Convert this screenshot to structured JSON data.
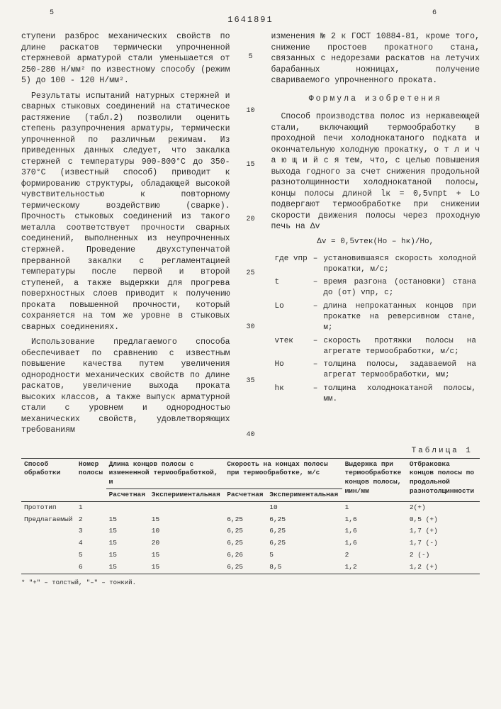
{
  "page_number": "1641891",
  "top_left": "5",
  "top_right": "6",
  "left_column": {
    "p1": "ступени разброс механических свойств по длине раскатов термически упрочненной стержневой арматурой стали уменьшается от 250-280 Н/мм² по известному способу (режим 5) до 100 - 120 Н/мм².",
    "p2": "Результаты испытаний натурных стержней и сварных стыковых соединений на статическое растяжение (табл.2) позволили оценить степень разупрочнения арматуры, термически упрочненной по различным режимам. Из приведенных данных следует, что закалка стержней с температуры 900-800°С до 350-370°С (известный способ) приводит к формированию структуры, обладающей высокой чувствительностью к повторному термическому воздействию (сварке). Прочность стыковых соединений из такого металла соответствует прочности сварных соединений, выполненных из неупрочненных стержней. Проведение двухступенчатой прерванной закалки с регламентацией температуры после первой и второй ступеней, а также выдержки для прогрева поверхностных слоев приводит к получению проката повышенной прочности, который сохраняется на том же уровне в стыковых сварных соединениях.",
    "p3": "Использование предлагаемого способа обеспечивает по сравнению с известным повышение качества путем увеличения однородности механических свойств по длине раскатов, увеличение выхода проката высоких классов, а также выпуск арматурной стали с уровнем и однородностью механических свойств, удовлетворяющих требованиям"
  },
  "right_column": {
    "p1": "изменения № 2 к ГОСТ 10884-81, кроме того, снижение простоев прокатного стана, связанных с недорезами раскатов на летучих барабанных ножницах, получение свариваемого упрочненного проката.",
    "formula_title": "Формула изобретения",
    "p2": "Способ производства полос из нержавеющей стали, включающий термообработку в проходной печи холоднокатаного подката и окончательную холодную прокатку, о т л и ч а ю щ и й с я тем, что, с целью повышения выхода годного за счет снижения продольной разнотолщинности холоднокатаной полосы, концы полосы длиной lк = 0,5vпрt + Lо подвергают термообработке при снижении скорости движения полосы через проходную печь на Δv",
    "eq": "Δv = 0,5vтек(Hо – hк)/Hо,",
    "where": [
      {
        "sym": "где vпр",
        "dash": "–",
        "def": "установившаяся скорость холодной прокатки, м/с;"
      },
      {
        "sym": "t",
        "dash": "–",
        "def": "время разгона (остановки) стана до (от) vпр, с;"
      },
      {
        "sym": "Lо",
        "dash": "–",
        "def": "длина непрокатанных концов при прокатке на реверсивном стане, м;"
      },
      {
        "sym": "vтек",
        "dash": "–",
        "def": "скорость протяжки полосы на агрегате термообработки, м/с;"
      },
      {
        "sym": "Hо",
        "dash": "–",
        "def": "толщина полосы, задаваемой на агрегат термообработки, мм;"
      },
      {
        "sym": "hк",
        "dash": "–",
        "def": "толщина холоднокатаной полосы, мм."
      }
    ]
  },
  "line_markers": [
    "5",
    "10",
    "15",
    "20",
    "25",
    "30",
    "35",
    "40"
  ],
  "table": {
    "caption": "Таблица 1",
    "headers_row1": [
      "Способ обработки",
      "Номер полосы",
      "Длина концов полосы с измененной термообработкой, м",
      "",
      "Скорость на концах полосы при термообработке, м/с",
      "",
      "Выдержка при термообработке концов полосы, мин/мм",
      "Отбраковка концов полосы по продольной разнотолщинности"
    ],
    "headers_row2": [
      "",
      "",
      "Расчетная",
      "Экспериментальная",
      "Расчетная",
      "Экспериментальная",
      "",
      ""
    ],
    "rows": [
      [
        "Прототип",
        "1",
        "",
        "",
        "",
        "10",
        "1",
        "2(+)"
      ],
      [
        "Предлагаемый",
        "2",
        "15",
        "15",
        "6,25",
        "6,25",
        "1,6",
        "0,5 (+)"
      ],
      [
        "",
        "3",
        "15",
        "10",
        "6,25",
        "6,25",
        "1,6",
        "1,7 (+)"
      ],
      [
        "",
        "4",
        "15",
        "20",
        "6,25",
        "6,25",
        "1,6",
        "1,7 (-)"
      ],
      [
        "",
        "5",
        "15",
        "15",
        "6,26",
        "5",
        "2",
        "2 (-)"
      ],
      [
        "",
        "6",
        "15",
        "15",
        "6,25",
        "8,5",
        "1,2",
        "1,2 (+)"
      ]
    ],
    "footnote": "* \"+\" – толстый, \"–\" – тонкий."
  }
}
